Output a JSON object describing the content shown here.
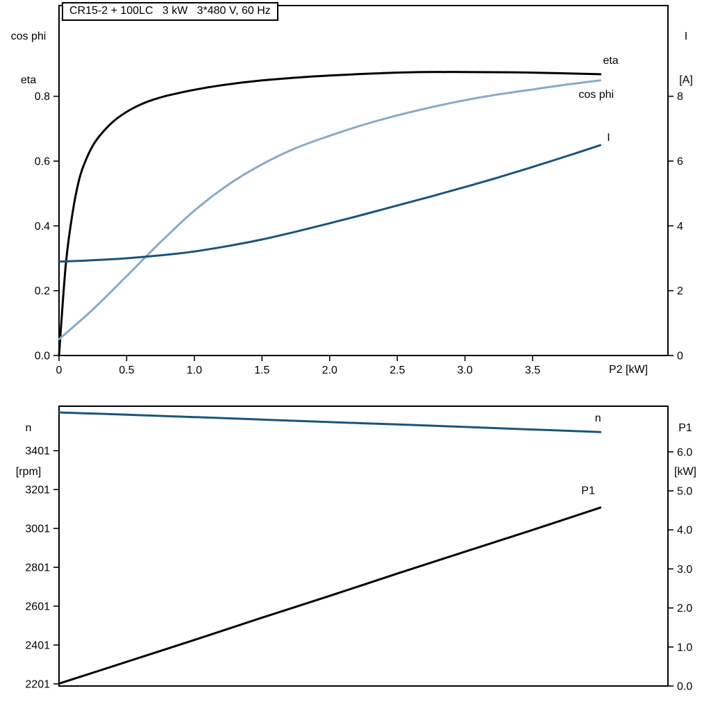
{
  "chart_data": [
    {
      "id": "motor-curves",
      "type": "line",
      "title": "CR15-2 + 100LC   3 kW   3*480 V, 60 Hz",
      "xlabel": "P2 [kW]",
      "left_axis_label_lines": [
        "cos phi",
        "eta"
      ],
      "right_axis_label_lines": [
        "I",
        "[A]"
      ],
      "xlim": [
        0,
        4.5
      ],
      "xticks": [
        0,
        0.5,
        1.0,
        1.5,
        2.0,
        2.5,
        3.0,
        3.5
      ],
      "xtick_labels": [
        "0",
        "0.5",
        "1.0",
        "1.5",
        "2.0",
        "2.5",
        "3.0",
        "3.5"
      ],
      "left_ylim": [
        0,
        1.08
      ],
      "left_yticks": [
        0.0,
        0.2,
        0.4,
        0.6,
        0.8
      ],
      "left_ytick_labels": [
        "0.0",
        "0.2",
        "0.4",
        "0.6",
        "0.8"
      ],
      "right_ylim": [
        0,
        10.8
      ],
      "right_yticks": [
        0,
        2,
        4,
        6,
        8
      ],
      "right_ytick_labels": [
        "0",
        "2",
        "4",
        "6",
        "8"
      ],
      "grid": false,
      "series": [
        {
          "name": "eta",
          "label": "eta",
          "axis": "left",
          "color": "#000000",
          "label_pos": [
            4.02,
            0.9
          ],
          "points": [
            [
              0,
              0
            ],
            [
              0.05,
              0.28
            ],
            [
              0.1,
              0.44
            ],
            [
              0.15,
              0.545
            ],
            [
              0.2,
              0.605
            ],
            [
              0.25,
              0.648
            ],
            [
              0.3,
              0.678
            ],
            [
              0.4,
              0.722
            ],
            [
              0.5,
              0.752
            ],
            [
              0.6,
              0.774
            ],
            [
              0.7,
              0.79
            ],
            [
              0.8,
              0.802
            ],
            [
              1.0,
              0.82
            ],
            [
              1.2,
              0.834
            ],
            [
              1.5,
              0.849
            ],
            [
              1.8,
              0.859
            ],
            [
              2.0,
              0.864
            ],
            [
              2.3,
              0.87
            ],
            [
              2.6,
              0.874
            ],
            [
              3.0,
              0.875
            ],
            [
              3.5,
              0.873
            ],
            [
              4.0,
              0.868
            ]
          ]
        },
        {
          "name": "cos phi",
          "label": "cos phi",
          "axis": "left",
          "color": "#89aac7",
          "label_pos": [
            3.84,
            0.795
          ],
          "points": [
            [
              0,
              0.05
            ],
            [
              0.25,
              0.142
            ],
            [
              0.5,
              0.245
            ],
            [
              0.75,
              0.35
            ],
            [
              1.0,
              0.447
            ],
            [
              1.25,
              0.527
            ],
            [
              1.5,
              0.59
            ],
            [
              1.75,
              0.64
            ],
            [
              2.0,
              0.678
            ],
            [
              2.25,
              0.712
            ],
            [
              2.5,
              0.741
            ],
            [
              2.75,
              0.766
            ],
            [
              3.0,
              0.788
            ],
            [
              3.25,
              0.806
            ],
            [
              3.5,
              0.821
            ],
            [
              3.75,
              0.836
            ],
            [
              4.0,
              0.849
            ]
          ]
        },
        {
          "name": "I",
          "label": "I",
          "axis": "right",
          "color": "#1a537d",
          "label_pos": [
            4.05,
            6.62
          ],
          "points": [
            [
              0,
              2.9
            ],
            [
              0.25,
              2.94
            ],
            [
              0.5,
              3.0
            ],
            [
              0.75,
              3.09
            ],
            [
              1.0,
              3.21
            ],
            [
              1.25,
              3.38
            ],
            [
              1.5,
              3.58
            ],
            [
              1.75,
              3.82
            ],
            [
              2.0,
              4.08
            ],
            [
              2.25,
              4.35
            ],
            [
              2.5,
              4.63
            ],
            [
              2.75,
              4.91
            ],
            [
              3.0,
              5.2
            ],
            [
              3.25,
              5.5
            ],
            [
              3.5,
              5.82
            ],
            [
              3.75,
              6.15
            ],
            [
              4.0,
              6.49
            ]
          ]
        }
      ]
    },
    {
      "id": "speed-power-curves",
      "type": "line",
      "title": "",
      "xlabel": "",
      "left_axis_label_lines": [
        "n",
        "[rpm]"
      ],
      "right_axis_label_lines": [
        "P1",
        "[kW]"
      ],
      "xlim": [
        0,
        4.5
      ],
      "xticks": [],
      "xtick_labels": [],
      "left_ylim": [
        2190,
        3630
      ],
      "left_yticks": [
        2201,
        2401,
        2601,
        2801,
        3001,
        3201,
        3401
      ],
      "left_ytick_labels": [
        "2201",
        "2401",
        "2601",
        "2801",
        "3001",
        "3201",
        "3401"
      ],
      "right_ylim": [
        0,
        7.17
      ],
      "right_yticks": [
        0,
        1,
        2,
        3,
        4,
        5,
        6
      ],
      "right_ytick_labels": [
        "0.0",
        "1.0",
        "2.0",
        "3.0",
        "4.0",
        "5.0",
        "6.0"
      ],
      "grid": false,
      "series": [
        {
          "name": "n",
          "label": "n",
          "axis": "left",
          "color": "#1a537d",
          "label_pos": [
            3.96,
            3552
          ],
          "points": [
            [
              0,
              3598
            ],
            [
              0.5,
              3586
            ],
            [
              1.0,
              3574
            ],
            [
              1.5,
              3561
            ],
            [
              2.0,
              3548
            ],
            [
              2.5,
              3536
            ],
            [
              3.0,
              3523
            ],
            [
              3.5,
              3510
            ],
            [
              4.0,
              3497
            ]
          ]
        },
        {
          "name": "P1",
          "label": "P1",
          "axis": "right",
          "color": "#000000",
          "label_pos": [
            3.86,
            4.92
          ],
          "points": [
            [
              0,
              0.06
            ],
            [
              0.5,
              0.62
            ],
            [
              1.0,
              1.18
            ],
            [
              1.5,
              1.75
            ],
            [
              2.0,
              2.31
            ],
            [
              2.5,
              2.88
            ],
            [
              3.0,
              3.44
            ],
            [
              3.5,
              4.0
            ],
            [
              4.0,
              4.57
            ]
          ]
        }
      ]
    }
  ]
}
